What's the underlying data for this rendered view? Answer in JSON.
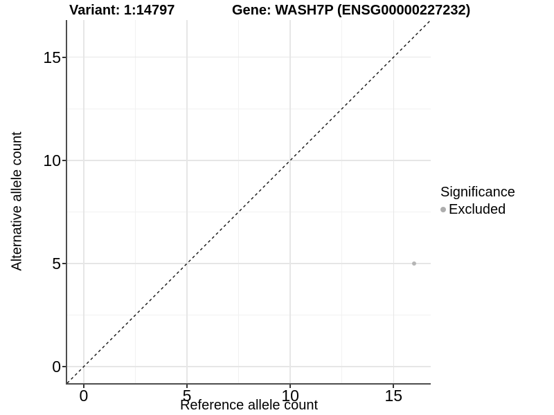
{
  "chart_data": {
    "type": "scatter",
    "title_variant": "Variant: 1:14797",
    "title_gene": "Gene: WASH7P (ENSG00000227232)",
    "xlabel": "Reference allele count",
    "ylabel": "Alternative allele count",
    "xlim": [
      -0.8,
      16.8
    ],
    "ylim": [
      -0.8,
      16.8
    ],
    "x_major_ticks": [
      0,
      5,
      10,
      15
    ],
    "y_major_ticks": [
      0,
      5,
      10,
      15
    ],
    "x_minor_ticks": [
      2.5,
      7.5,
      12.5
    ],
    "y_minor_ticks": [
      2.5,
      7.5,
      12.5
    ],
    "grid": {
      "major": true,
      "minor": true
    },
    "reference_line": {
      "type": "identity",
      "from": [
        -0.8,
        -0.8
      ],
      "to": [
        16.8,
        16.8
      ],
      "style": "dashed",
      "color": "#111111"
    },
    "series": [
      {
        "name": "Excluded",
        "color": "#b5b5b5",
        "points": [
          {
            "x": 16,
            "y": 5
          }
        ]
      }
    ],
    "legend": {
      "title": "Significance",
      "position": "right",
      "entries": [
        {
          "label": "Excluded",
          "color": "#adadad"
        }
      ]
    },
    "colors": {
      "grid_major": "#e6e6e6",
      "grid_minor": "#f1f1f1",
      "axis_line": "#4d4d4d",
      "tick_mark": "#333333",
      "text": "#000000"
    }
  }
}
